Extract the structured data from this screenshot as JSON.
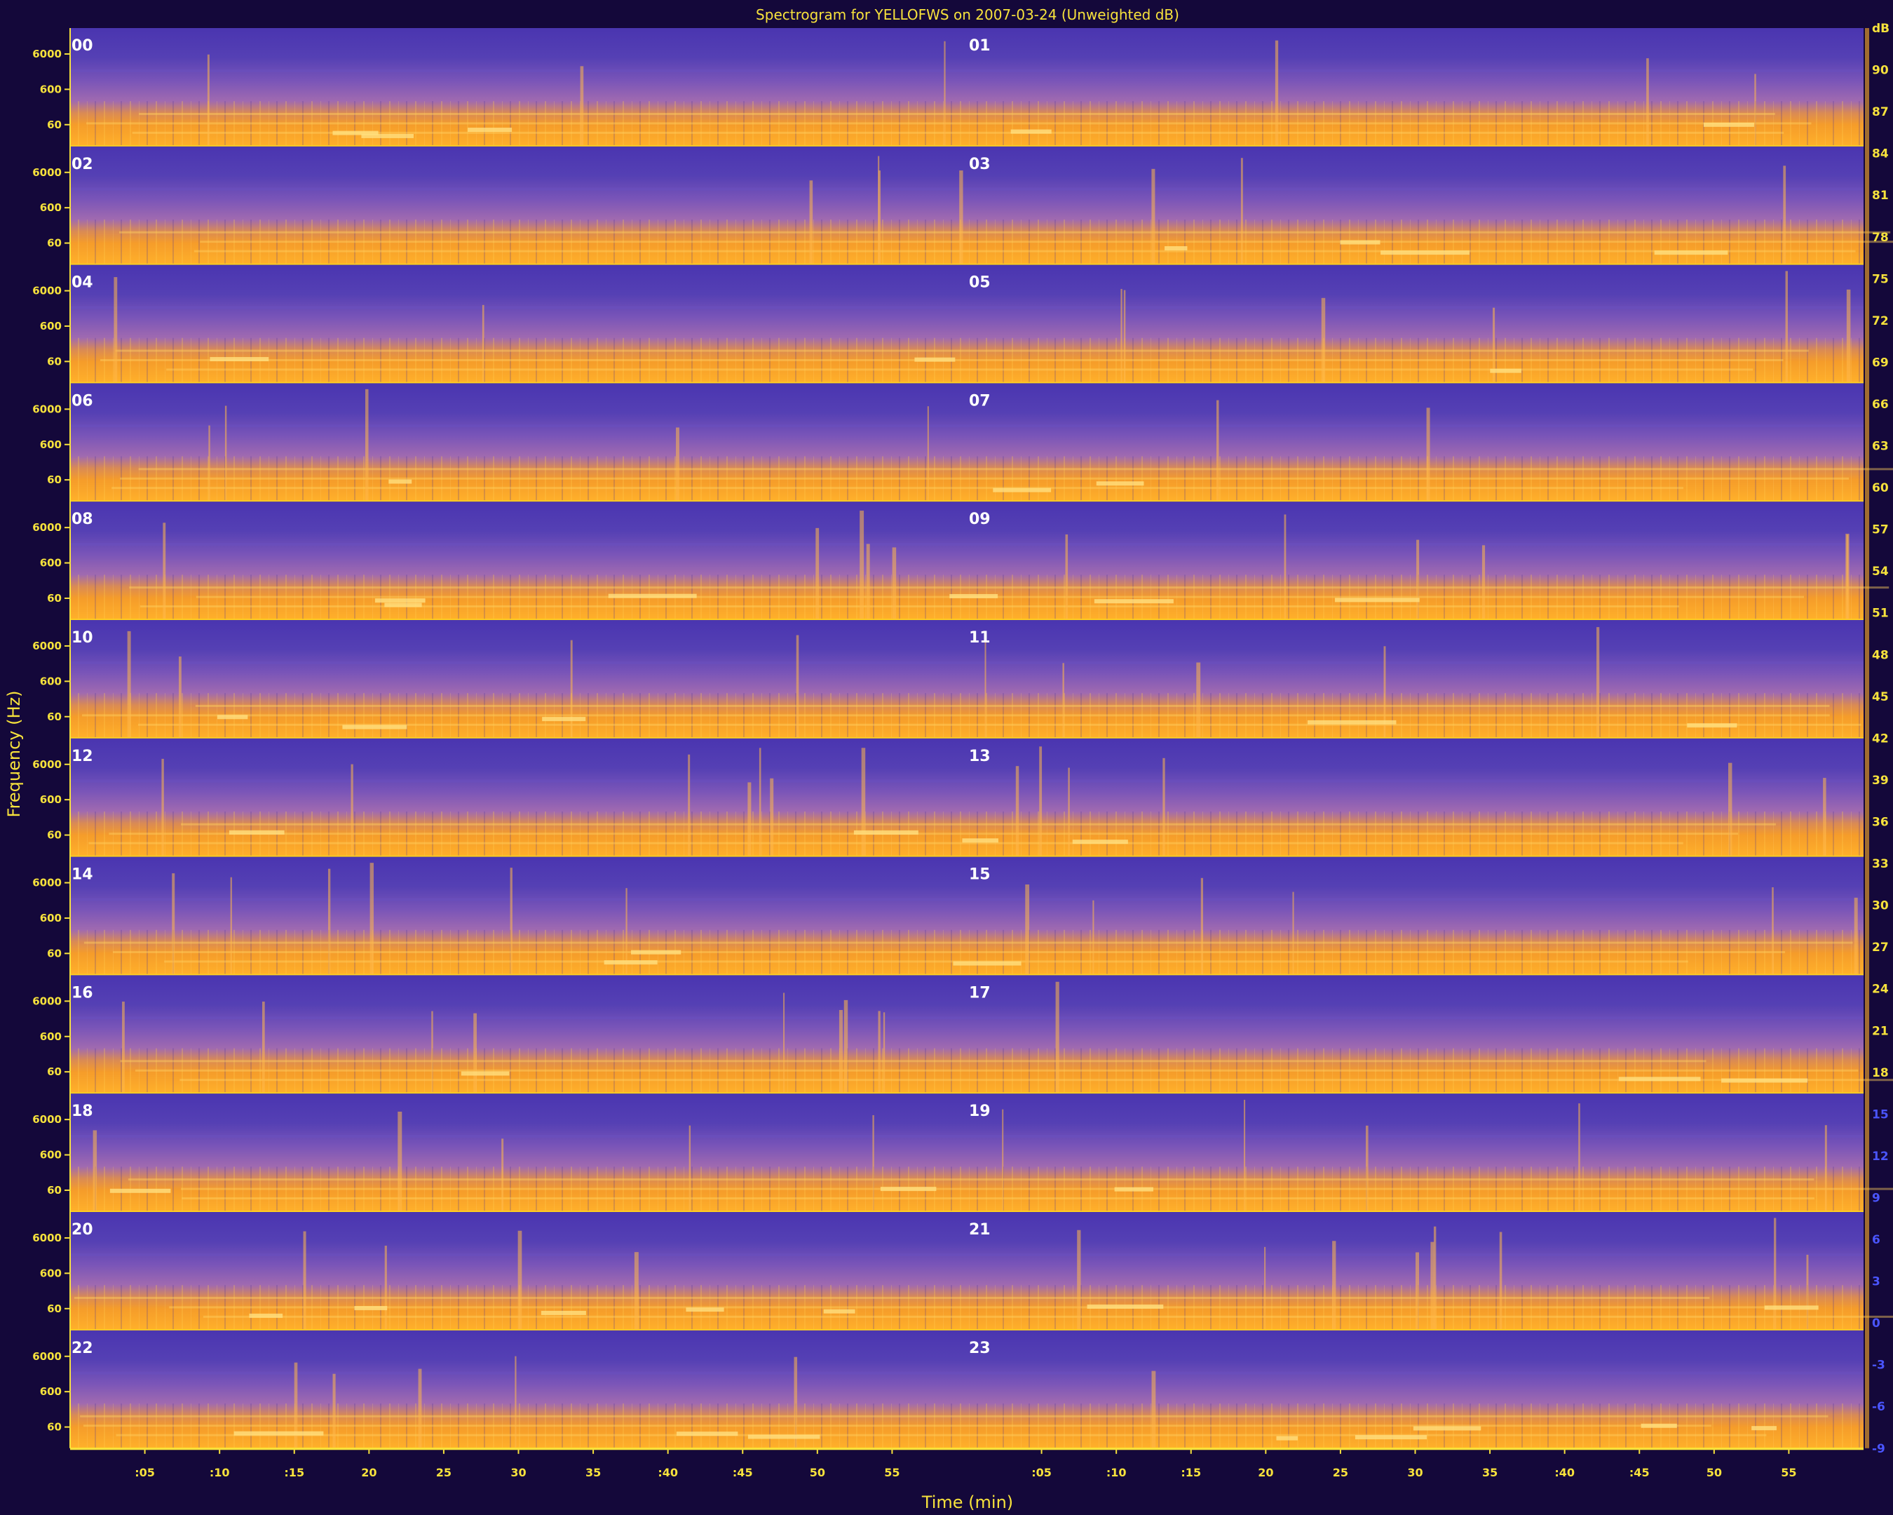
{
  "colors": {
    "background": "#14083a",
    "text": "#f7e23c",
    "low": "#4a35b0",
    "mid": "#9a5fb8",
    "high": "#ffa319",
    "peak": "#ffc33a"
  },
  "chart_data": {
    "type": "heatmap",
    "title": "Spectrogram for YELLOFWS on 2007-03-24 (Unweighted dB)",
    "xlabel": "Time (min)",
    "ylabel": "Frequency (Hz)",
    "hours": [
      "00",
      "01",
      "02",
      "03",
      "04",
      "05",
      "06",
      "07",
      "08",
      "09",
      "10",
      "11",
      "12",
      "13",
      "14",
      "15",
      "16",
      "17",
      "18",
      "19",
      "20",
      "21",
      "22",
      "23"
    ],
    "hour_minute_ticks": [
      ":05",
      ":10",
      ":15",
      "20",
      "25",
      "30",
      "35",
      ":40",
      ":45",
      "50",
      "55"
    ],
    "frequency_ticks": [
      "6000",
      "600",
      "60"
    ],
    "db_scale": {
      "ticks": [
        "dB",
        "90",
        "87",
        "84",
        "81",
        "78",
        "75",
        "72",
        "69",
        "66",
        "63",
        "60",
        "57",
        "54",
        "51",
        "48",
        "45",
        "42",
        "39",
        "36",
        "33",
        "30",
        "27",
        "24",
        "21",
        "18",
        "15",
        "12",
        "9",
        "6",
        "3",
        "0",
        "-3",
        "-6",
        "-9"
      ],
      "max_db": 93,
      "min_db": -9
    }
  }
}
